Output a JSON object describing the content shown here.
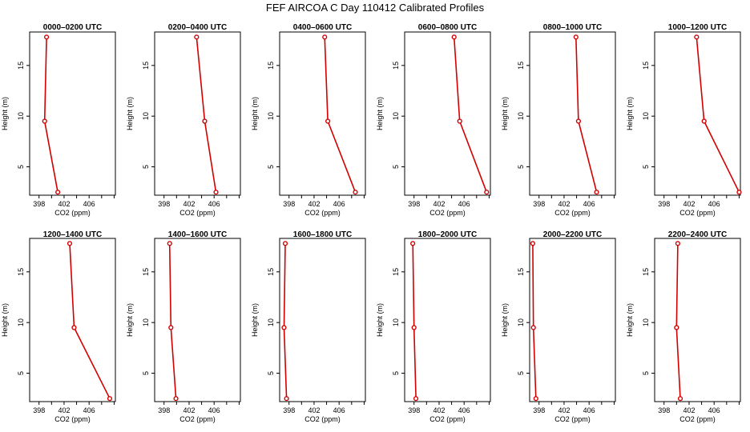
{
  "figure": {
    "title": "FEF AIRCOA C  Day 110412  Calibrated Profiles",
    "line_color": "#d40000",
    "point_marker": "open-circle"
  },
  "chart_data": [
    {
      "type": "line",
      "title": "0000–0200 UTC",
      "xlabel": "CO2 (ppm)",
      "ylabel": "Height (m)",
      "xlim": [
        396.5,
        410.2
      ],
      "ylim": [
        2.2,
        18.3
      ],
      "xticks": [
        "398",
        "402",
        "406"
      ],
      "yticks": [
        "5",
        "10",
        "15"
      ],
      "series": [
        {
          "x": [
            401.0,
            398.9,
            399.2
          ],
          "y": [
            2.5,
            9.5,
            17.8
          ]
        }
      ]
    },
    {
      "type": "line",
      "title": "0200–0400 UTC",
      "xlabel": "CO2 (ppm)",
      "ylabel": "Height (m)",
      "xlim": [
        396.5,
        410.2
      ],
      "ylim": [
        2.2,
        18.3
      ],
      "xticks": [
        "398",
        "402",
        "406"
      ],
      "yticks": [
        "5",
        "10",
        "15"
      ],
      "series": [
        {
          "x": [
            406.3,
            404.5,
            403.2
          ],
          "y": [
            2.5,
            9.5,
            17.8
          ]
        }
      ]
    },
    {
      "type": "line",
      "title": "0400–0600 UTC",
      "xlabel": "CO2 (ppm)",
      "ylabel": "Height (m)",
      "xlim": [
        396.5,
        410.2
      ],
      "ylim": [
        2.2,
        18.3
      ],
      "xticks": [
        "398",
        "402",
        "406"
      ],
      "yticks": [
        "5",
        "10",
        "15"
      ],
      "series": [
        {
          "x": [
            408.6,
            404.2,
            403.7
          ],
          "y": [
            2.5,
            9.5,
            17.8
          ]
        }
      ]
    },
    {
      "type": "line",
      "title": "0600–0800 UTC",
      "xlabel": "CO2 (ppm)",
      "ylabel": "Height (m)",
      "xlim": [
        396.5,
        410.2
      ],
      "ylim": [
        2.2,
        18.3
      ],
      "xticks": [
        "398",
        "402",
        "406"
      ],
      "yticks": [
        "5",
        "10",
        "15"
      ],
      "series": [
        {
          "x": [
            409.6,
            405.3,
            404.4
          ],
          "y": [
            2.5,
            9.5,
            17.8
          ]
        }
      ]
    },
    {
      "type": "line",
      "title": "0800–1000 UTC",
      "xlabel": "CO2 (ppm)",
      "ylabel": "Height (m)",
      "xlim": [
        396.5,
        410.2
      ],
      "ylim": [
        2.2,
        18.3
      ],
      "xticks": [
        "398",
        "402",
        "406"
      ],
      "yticks": [
        "5",
        "10",
        "15"
      ],
      "series": [
        {
          "x": [
            407.2,
            404.3,
            403.9
          ],
          "y": [
            2.5,
            9.5,
            17.8
          ]
        }
      ]
    },
    {
      "type": "line",
      "title": "1000–1200 UTC",
      "xlabel": "CO2 (ppm)",
      "ylabel": "Height (m)",
      "xlim": [
        396.5,
        410.2
      ],
      "ylim": [
        2.2,
        18.3
      ],
      "xticks": [
        "398",
        "402",
        "406"
      ],
      "yticks": [
        "5",
        "10",
        "15"
      ],
      "series": [
        {
          "x": [
            410.0,
            404.4,
            403.2
          ],
          "y": [
            2.5,
            9.5,
            17.8
          ]
        }
      ]
    },
    {
      "type": "line",
      "title": "1200–1400 UTC",
      "xlabel": "CO2 (ppm)",
      "ylabel": "Height (m)",
      "xlim": [
        396.5,
        410.2
      ],
      "ylim": [
        2.2,
        18.3
      ],
      "xticks": [
        "398",
        "402",
        "406"
      ],
      "yticks": [
        "5",
        "10",
        "15"
      ],
      "series": [
        {
          "x": [
            409.3,
            403.6,
            402.9
          ],
          "y": [
            2.5,
            9.5,
            17.8
          ]
        }
      ]
    },
    {
      "type": "line",
      "title": "1400–1600 UTC",
      "xlabel": "CO2 (ppm)",
      "ylabel": "Height (m)",
      "xlim": [
        396.5,
        410.2
      ],
      "ylim": [
        2.2,
        18.3
      ],
      "xticks": [
        "398",
        "402",
        "406"
      ],
      "yticks": [
        "5",
        "10",
        "15"
      ],
      "series": [
        {
          "x": [
            399.9,
            399.1,
            398.9
          ],
          "y": [
            2.5,
            9.5,
            17.8
          ]
        }
      ]
    },
    {
      "type": "line",
      "title": "1600–1800 UTC",
      "xlabel": "CO2 (ppm)",
      "ylabel": "Height (m)",
      "xlim": [
        396.5,
        410.2
      ],
      "ylim": [
        2.2,
        18.3
      ],
      "xticks": [
        "398",
        "402",
        "406"
      ],
      "yticks": [
        "5",
        "10",
        "15"
      ],
      "series": [
        {
          "x": [
            397.6,
            397.2,
            397.4
          ],
          "y": [
            2.5,
            9.5,
            17.8
          ]
        }
      ]
    },
    {
      "type": "line",
      "title": "1800–2000 UTC",
      "xlabel": "CO2 (ppm)",
      "ylabel": "Height (m)",
      "xlim": [
        396.5,
        410.2
      ],
      "ylim": [
        2.2,
        18.3
      ],
      "xticks": [
        "398",
        "402",
        "406"
      ],
      "yticks": [
        "5",
        "10",
        "15"
      ],
      "series": [
        {
          "x": [
            398.3,
            398.0,
            397.8
          ],
          "y": [
            2.5,
            9.5,
            17.8
          ]
        }
      ]
    },
    {
      "type": "line",
      "title": "2000–2200 UTC",
      "xlabel": "CO2 (ppm)",
      "ylabel": "Height (m)",
      "xlim": [
        396.5,
        410.2
      ],
      "ylim": [
        2.2,
        18.3
      ],
      "xticks": [
        "398",
        "402",
        "406"
      ],
      "yticks": [
        "5",
        "10",
        "15"
      ],
      "series": [
        {
          "x": [
            397.5,
            397.1,
            397.0
          ],
          "y": [
            2.5,
            9.5,
            17.8
          ]
        }
      ]
    },
    {
      "type": "line",
      "title": "2200–2400 UTC",
      "xlabel": "CO2 (ppm)",
      "ylabel": "Height (m)",
      "xlim": [
        396.5,
        410.2
      ],
      "ylim": [
        2.2,
        18.3
      ],
      "xticks": [
        "398",
        "402",
        "406"
      ],
      "yticks": [
        "5",
        "10",
        "15"
      ],
      "series": [
        {
          "x": [
            400.6,
            400.0,
            400.2
          ],
          "y": [
            2.5,
            9.5,
            17.8
          ]
        }
      ]
    }
  ]
}
